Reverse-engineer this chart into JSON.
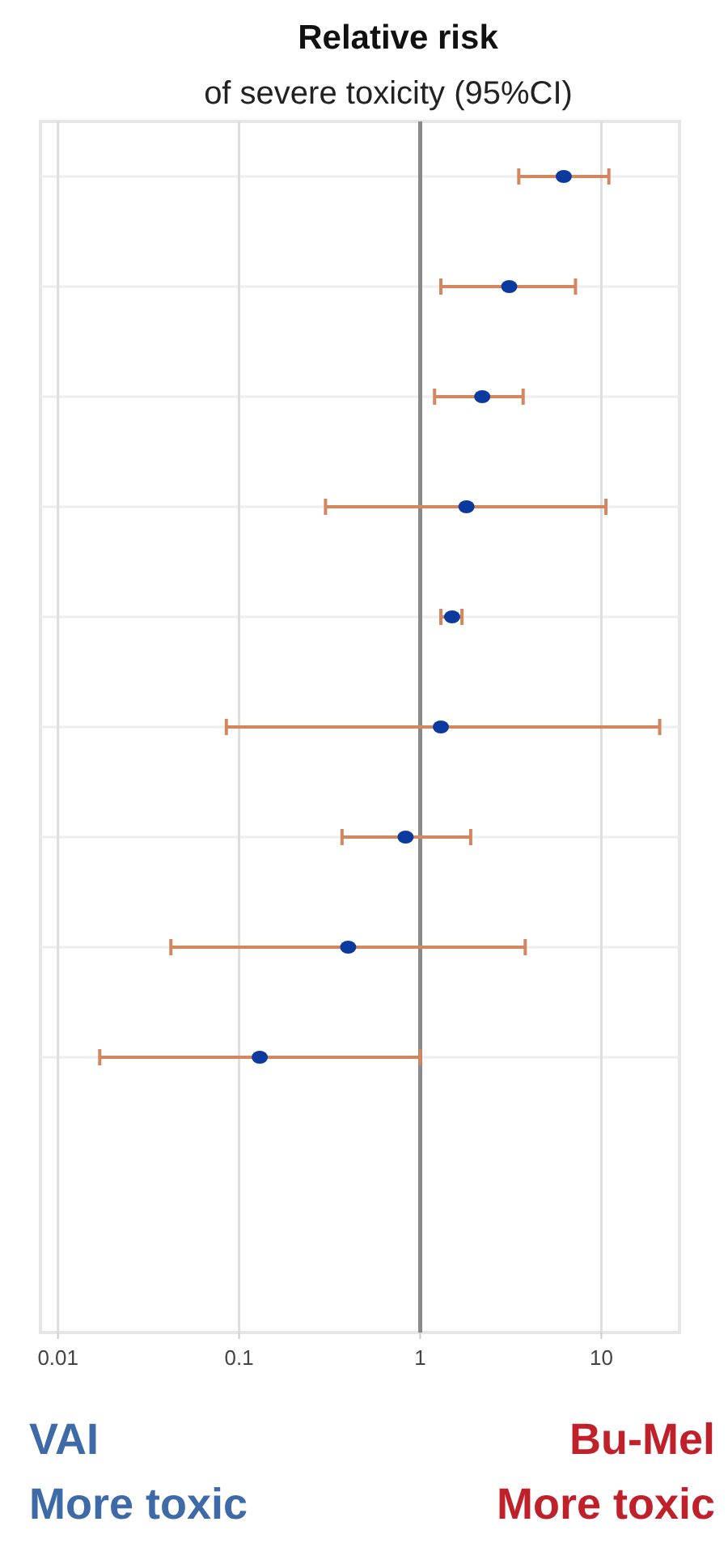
{
  "chart_data": {
    "type": "scatter",
    "orientation": "horizontal",
    "title": "Relative risk",
    "subtitle": "of severe toxicity (95%CI)",
    "categories": [
      null,
      null,
      null,
      null,
      null,
      null,
      null,
      null,
      null,
      null,
      null
    ],
    "series": [
      {
        "color": "#0a3a9e",
        "values": [
          6.2,
          3.1,
          2.2,
          1.8,
          1.5,
          1.3,
          0.83,
          0.4,
          0.13,
          null,
          null
        ],
        "errors": [
          [
            3.5,
            11
          ],
          [
            1.3,
            7.2
          ],
          [
            1.2,
            3.7
          ],
          [
            0.3,
            10.6
          ],
          [
            1.3,
            1.7
          ],
          [
            0.085,
            21
          ],
          [
            0.37,
            1.9
          ],
          [
            0.042,
            3.8
          ],
          [
            0.017,
            1.0
          ],
          null,
          null
        ]
      }
    ],
    "log": "x",
    "xlim": [
      0.008,
      27
    ],
    "xticks": [
      0.01,
      0.1,
      1,
      10
    ],
    "grid": true,
    "marker": "circle",
    "ref_lines": [
      {
        "axis": "x",
        "value": 1,
        "color": "#8a8a8a"
      }
    ],
    "annotations": [
      "VAI",
      "More toxic",
      "Bu-Mel",
      "More toxic"
    ]
  }
}
